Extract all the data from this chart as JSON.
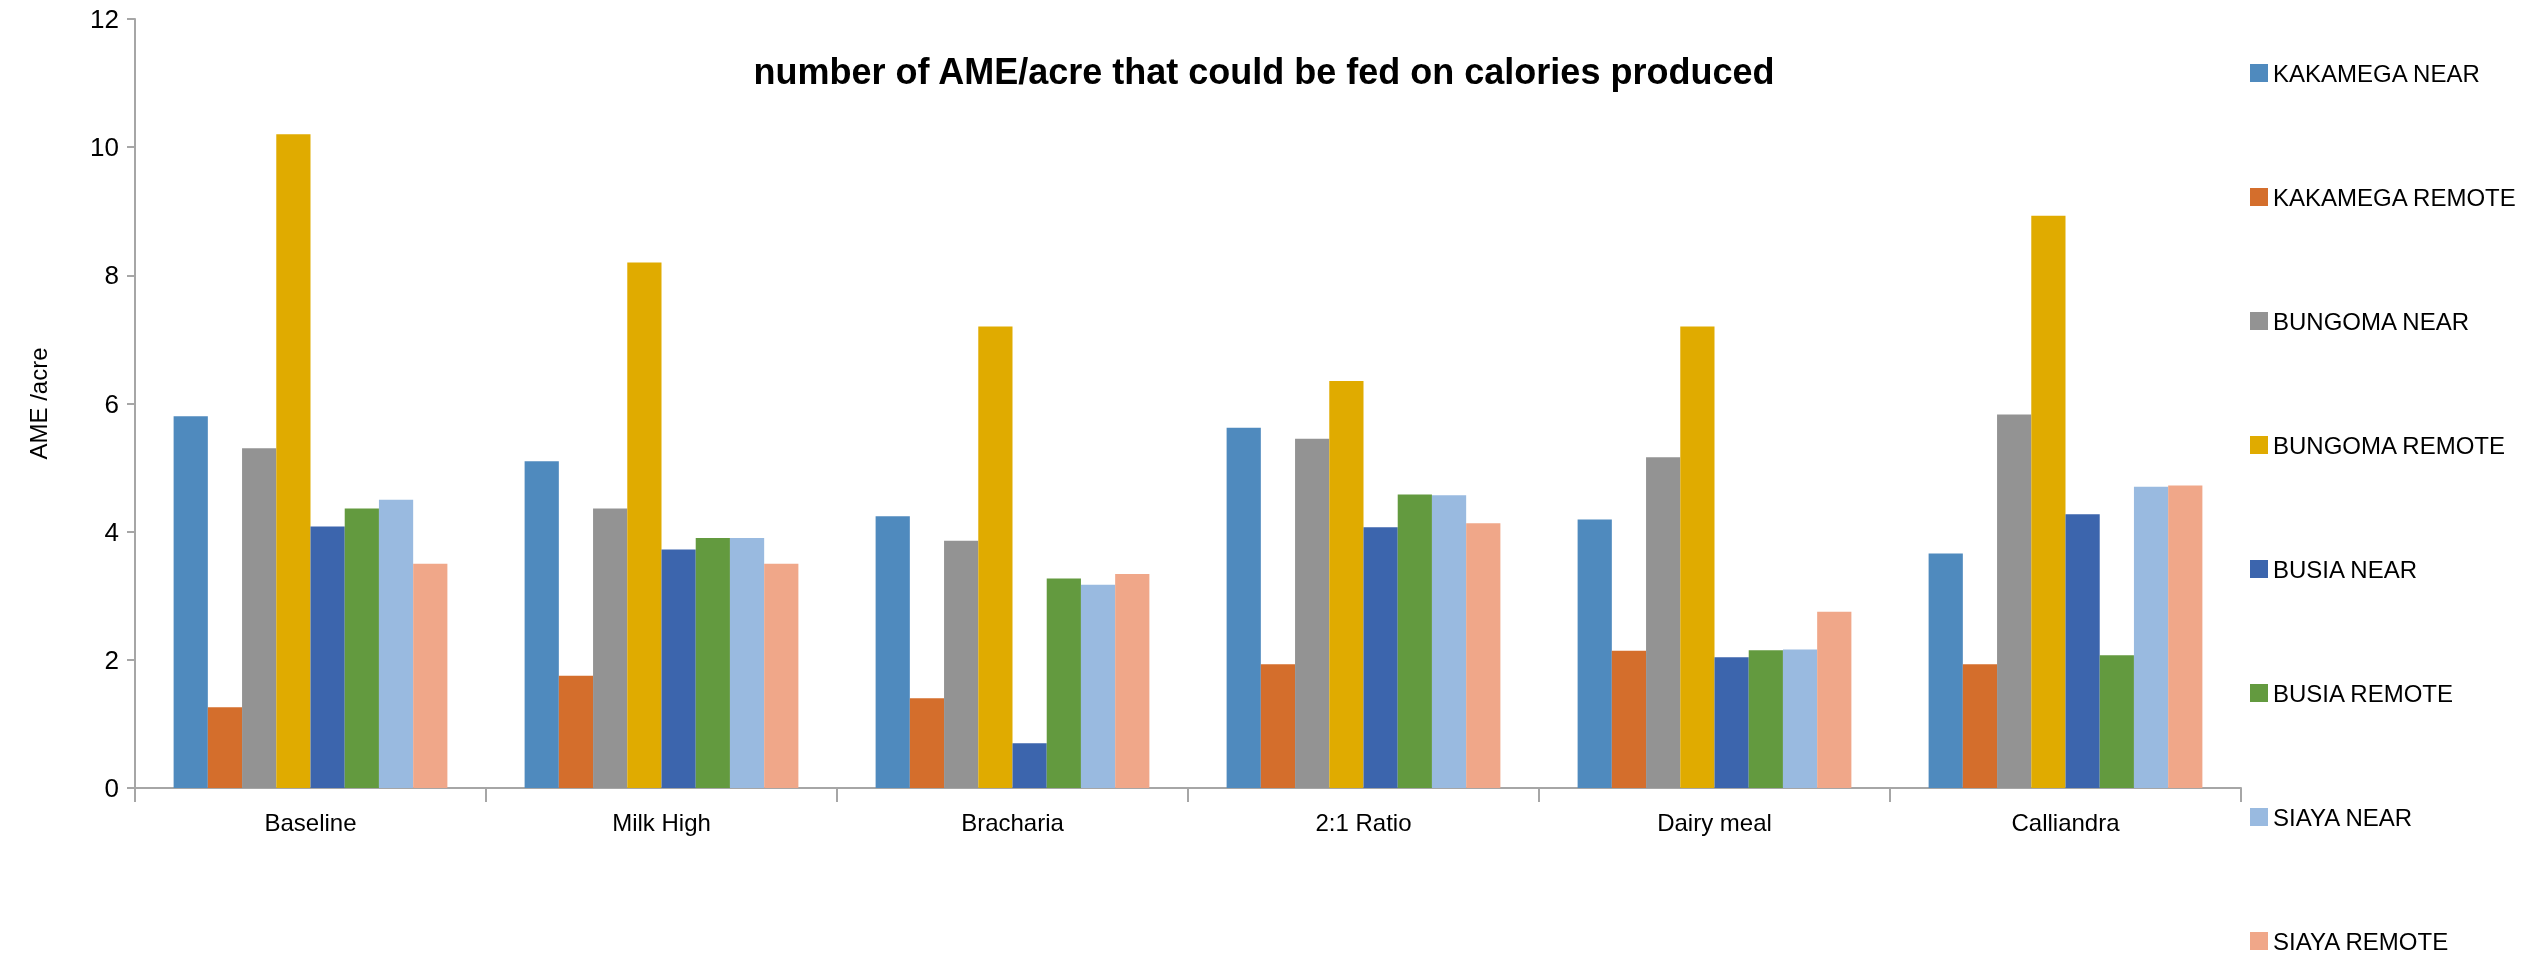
{
  "chart_data": {
    "type": "bar",
    "title": "number of AME/acre that could be fed on calories produced",
    "ylabel": "AME /acre",
    "categories": [
      "Baseline",
      "Milk High",
      "Bracharia",
      "2:1 Ratio",
      "Dairy meal",
      "Calliandra"
    ],
    "series": [
      {
        "name": "KAKAMEGA NEAR",
        "color": "#4f8abe",
        "values": [
          5.8,
          5.1,
          4.24,
          5.62,
          4.19,
          3.66
        ]
      },
      {
        "name": "KAKAMEGA REMOTE",
        "color": "#d46e2c",
        "values": [
          1.26,
          1.75,
          1.4,
          1.93,
          2.14,
          1.93
        ]
      },
      {
        "name": "BUNGOMA NEAR",
        "color": "#939393",
        "values": [
          5.3,
          4.36,
          3.86,
          5.45,
          5.16,
          5.83
        ]
      },
      {
        "name": "BUNGOMA REMOTE",
        "color": "#e0ab00",
        "values": [
          10.2,
          8.2,
          7.2,
          6.35,
          7.2,
          8.93
        ]
      },
      {
        "name": "BUSIA NEAR",
        "color": "#3c65ad",
        "values": [
          4.08,
          3.72,
          0.7,
          4.07,
          2.04,
          4.27
        ]
      },
      {
        "name": "BUSIA REMOTE",
        "color": "#639a3f",
        "values": [
          4.36,
          3.9,
          3.27,
          4.58,
          2.15,
          2.07
        ]
      },
      {
        "name": "SIAYA NEAR",
        "color": "#99bae0",
        "values": [
          4.5,
          3.9,
          3.17,
          4.57,
          2.16,
          4.7
        ]
      },
      {
        "name": "SIAYA REMOTE",
        "color": "#f0a789",
        "values": [
          3.5,
          3.5,
          3.34,
          4.13,
          2.75,
          4.72
        ]
      }
    ],
    "ylim": [
      0,
      12
    ],
    "yticks": [
      0,
      2,
      4,
      6,
      8,
      10,
      12
    ],
    "grid": false,
    "legend": "right"
  }
}
